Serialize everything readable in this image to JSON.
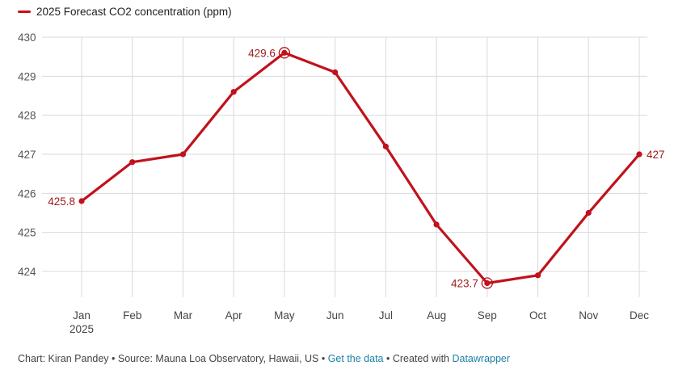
{
  "legend": {
    "label": "2025 Forecast CO2 concentration (ppm)",
    "color": "#c0121c"
  },
  "chart_data": {
    "type": "line",
    "categories": [
      "Jan",
      "Feb",
      "Mar",
      "Apr",
      "May",
      "Jun",
      "Jul",
      "Aug",
      "Sep",
      "Oct",
      "Nov",
      "Dec"
    ],
    "first_category_sublabel": "2025",
    "series": [
      {
        "name": "2025 Forecast CO2 concentration (ppm)",
        "values": [
          425.8,
          426.8,
          427.0,
          428.6,
          429.6,
          429.1,
          427.2,
          425.2,
          423.7,
          423.9,
          425.5,
          427.0
        ]
      }
    ],
    "y_ticks": [
      424,
      425,
      426,
      427,
      428,
      429,
      430
    ],
    "ylim": [
      423.5,
      430
    ],
    "grid": true,
    "data_labels": [
      {
        "index": 0,
        "text": "425.8",
        "side": "left"
      },
      {
        "index": 4,
        "text": "429.6",
        "side": "left",
        "highlight": true
      },
      {
        "index": 8,
        "text": "423.7",
        "side": "left",
        "highlight": true
      },
      {
        "index": 11,
        "text": "427",
        "side": "right"
      }
    ],
    "colors": {
      "line": "#c0121c",
      "grid": "#d9d9d9",
      "label": "#9e1a1a"
    }
  },
  "footer": {
    "prefix": "Chart: Kiran Pandey • Source: Mauna Loa Observatory, Hawaii, US • ",
    "get_data": "Get the data",
    "middle": " • Created with ",
    "datawrapper": "Datawrapper"
  }
}
